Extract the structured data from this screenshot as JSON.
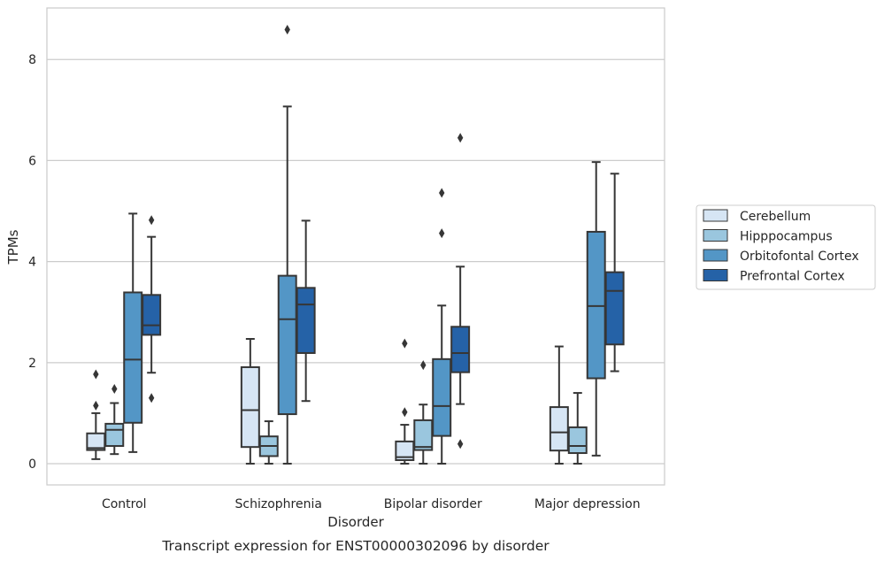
{
  "chart_data": {
    "type": "boxplot",
    "title": "",
    "caption": "Transcript expression for ENST00000302096 by disorder",
    "xlabel": "Disorder",
    "ylabel": "TPMs",
    "ylim": [
      -0.42,
      9.02
    ],
    "yticks": [
      0,
      2,
      4,
      6,
      8
    ],
    "grid": true,
    "legend_position": "right",
    "categories": [
      "Control",
      "Schizophrenia",
      "Bipolar disorder",
      "Major depression"
    ],
    "series": [
      {
        "name": "Cerebellum",
        "color": "#d6e5f4",
        "boxes": [
          {
            "whislo": 0.09,
            "q1": 0.27,
            "med": 0.31,
            "q3": 0.6,
            "whishi": 1.0,
            "fliers": [
              1.15,
              1.77
            ]
          },
          {
            "whislo": 0.0,
            "q1": 0.33,
            "med": 1.06,
            "q3": 1.91,
            "whishi": 2.47,
            "fliers": []
          },
          {
            "whislo": 0.0,
            "q1": 0.07,
            "med": 0.13,
            "q3": 0.44,
            "whishi": 0.77,
            "fliers": [
              1.02,
              2.38
            ]
          },
          {
            "whislo": 0.0,
            "q1": 0.26,
            "med": 0.62,
            "q3": 1.12,
            "whishi": 2.32,
            "fliers": []
          }
        ]
      },
      {
        "name": "Hipppocampus",
        "color": "#9ac6de",
        "boxes": [
          {
            "whislo": 0.19,
            "q1": 0.35,
            "med": 0.67,
            "q3": 0.79,
            "whishi": 1.2,
            "fliers": [
              1.48
            ]
          },
          {
            "whislo": 0.0,
            "q1": 0.15,
            "med": 0.35,
            "q3": 0.54,
            "whishi": 0.84,
            "fliers": []
          },
          {
            "whislo": 0.0,
            "q1": 0.27,
            "med": 0.33,
            "q3": 0.86,
            "whishi": 1.17,
            "fliers": [
              1.95
            ]
          },
          {
            "whislo": 0.0,
            "q1": 0.21,
            "med": 0.35,
            "q3": 0.72,
            "whishi": 1.4,
            "fliers": []
          }
        ]
      },
      {
        "name": "Orbitofontal Cortex",
        "color": "#5396c6",
        "boxes": [
          {
            "whislo": 0.23,
            "q1": 0.81,
            "med": 2.06,
            "q3": 3.39,
            "whishi": 4.95,
            "fliers": []
          },
          {
            "whislo": 0.0,
            "q1": 0.98,
            "med": 2.86,
            "q3": 3.72,
            "whishi": 7.07,
            "fliers": [
              8.59
            ]
          },
          {
            "whislo": 0.0,
            "q1": 0.55,
            "med": 1.14,
            "q3": 2.07,
            "whishi": 3.13,
            "fliers": [
              4.56,
              5.36
            ]
          },
          {
            "whislo": 0.16,
            "q1": 1.69,
            "med": 3.12,
            "q3": 4.59,
            "whishi": 5.97,
            "fliers": []
          }
        ]
      },
      {
        "name": "Prefrontal Cortex",
        "color": "#2562a7",
        "boxes": [
          {
            "whislo": 1.8,
            "q1": 2.55,
            "med": 2.74,
            "q3": 3.34,
            "whishi": 4.49,
            "fliers": [
              1.3,
              4.82
            ]
          },
          {
            "whislo": 1.24,
            "q1": 2.19,
            "med": 3.15,
            "q3": 3.48,
            "whishi": 4.81,
            "fliers": []
          },
          {
            "whislo": 1.18,
            "q1": 1.81,
            "med": 2.19,
            "q3": 2.71,
            "whishi": 3.9,
            "fliers": [
              0.39,
              6.45
            ]
          },
          {
            "whislo": 1.83,
            "q1": 2.36,
            "med": 3.42,
            "q3": 3.79,
            "whishi": 5.74,
            "fliers": []
          }
        ]
      }
    ]
  }
}
